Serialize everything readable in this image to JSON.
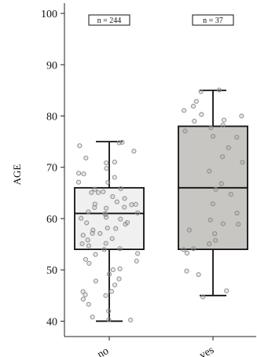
{
  "chart_data": {
    "type": "box",
    "ylabel": "AGE",
    "xlabel": "",
    "ylim": [
      37,
      102
    ],
    "yticks": [
      40,
      50,
      60,
      70,
      80,
      90,
      100
    ],
    "grid": false,
    "groups": [
      {
        "category": "no",
        "n_label": "n = 244",
        "box_color": "#f0f0f0",
        "whisker_low": 40,
        "q1": 54,
        "median": 61,
        "q3": 66,
        "whisker_high": 75,
        "points": [
          42,
          45,
          45,
          46,
          47,
          48,
          48,
          49,
          50,
          50,
          51,
          52,
          52,
          53,
          54,
          54,
          55,
          55,
          56,
          56,
          57,
          57,
          58,
          58,
          58,
          59,
          59,
          60,
          60,
          60,
          61,
          61,
          61,
          62,
          62,
          62,
          63,
          63,
          63,
          64,
          64,
          65,
          65,
          66,
          66,
          67,
          68,
          69,
          70,
          71,
          72,
          73,
          74,
          75,
          75,
          41,
          43,
          44,
          46,
          40,
          40,
          53,
          55,
          57,
          59,
          61,
          63,
          65,
          67,
          69,
          71
        ]
      },
      {
        "category": "yes",
        "n_label": "n = 37",
        "box_color": "#c8c6c2",
        "whisker_low": 45,
        "q1": 54,
        "median": 66,
        "q3": 78,
        "whisker_high": 85,
        "points": [
          45,
          46,
          49,
          50,
          53,
          54,
          54,
          55,
          56,
          57,
          58,
          59,
          59,
          60,
          61,
          63,
          65,
          66,
          67,
          69,
          71,
          72,
          74,
          76,
          76,
          77,
          78,
          78,
          79,
          79,
          80,
          80,
          81,
          82,
          83,
          85,
          85
        ]
      }
    ]
  }
}
